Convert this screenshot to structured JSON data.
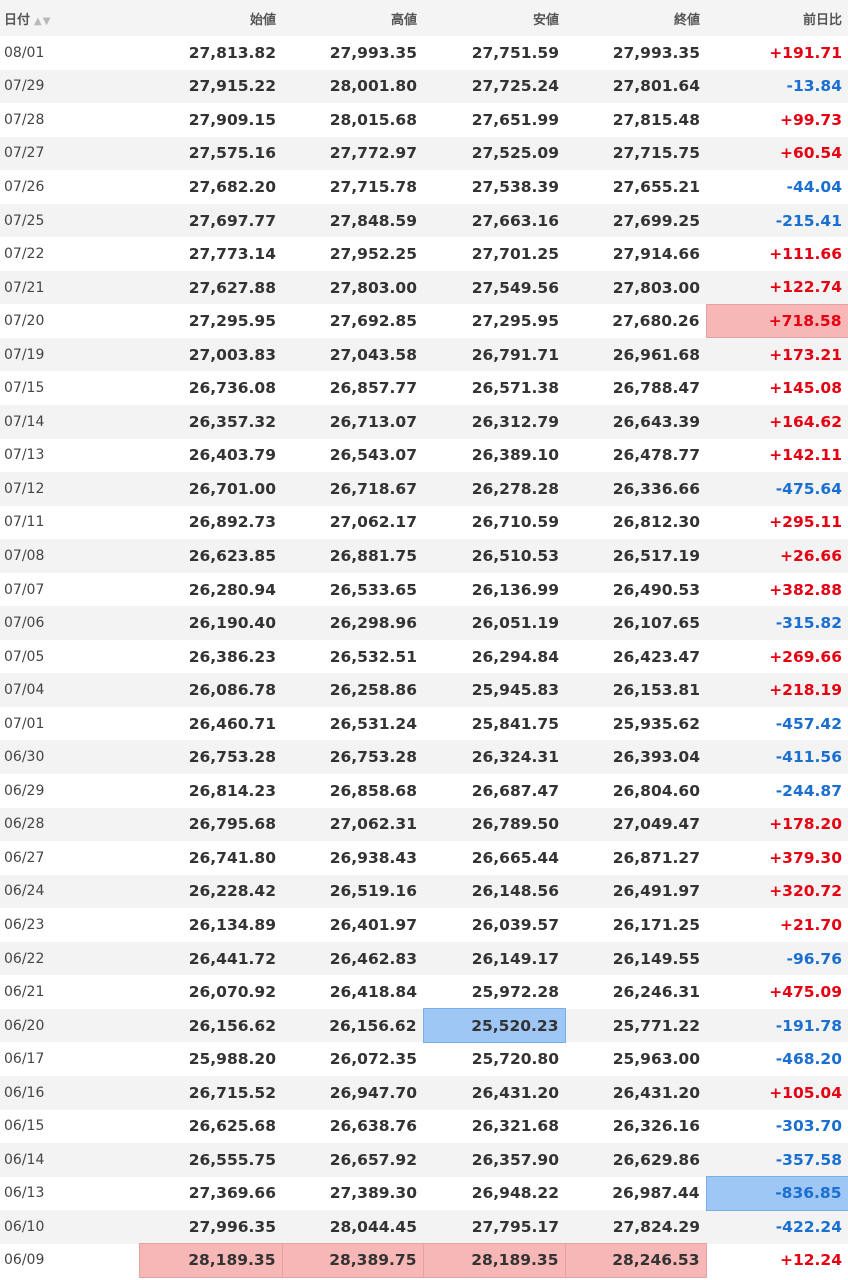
{
  "headers": {
    "date": "日付",
    "open": "始値",
    "high": "高値",
    "low": "安値",
    "close": "終値",
    "change": "前日比"
  },
  "colors": {
    "up": "#e60012",
    "down": "#1a6fd0",
    "highlight_high": "#f7b7b7",
    "highlight_low": "#9ec7f5"
  },
  "rows": [
    {
      "date": "08/01",
      "open": "27,813.82",
      "high": "27,993.35",
      "low": "27,751.59",
      "close": "27,993.35",
      "change": "+191.71"
    },
    {
      "date": "07/29",
      "open": "27,915.22",
      "high": "28,001.80",
      "low": "27,725.24",
      "close": "27,801.64",
      "change": "-13.84"
    },
    {
      "date": "07/28",
      "open": "27,909.15",
      "high": "28,015.68",
      "low": "27,651.99",
      "close": "27,815.48",
      "change": "+99.73"
    },
    {
      "date": "07/27",
      "open": "27,575.16",
      "high": "27,772.97",
      "low": "27,525.09",
      "close": "27,715.75",
      "change": "+60.54"
    },
    {
      "date": "07/26",
      "open": "27,682.20",
      "high": "27,715.78",
      "low": "27,538.39",
      "close": "27,655.21",
      "change": "-44.04"
    },
    {
      "date": "07/25",
      "open": "27,697.77",
      "high": "27,848.59",
      "low": "27,663.16",
      "close": "27,699.25",
      "change": "-215.41"
    },
    {
      "date": "07/22",
      "open": "27,773.14",
      "high": "27,952.25",
      "low": "27,701.25",
      "close": "27,914.66",
      "change": "+111.66"
    },
    {
      "date": "07/21",
      "open": "27,627.88",
      "high": "27,803.00",
      "low": "27,549.56",
      "close": "27,803.00",
      "change": "+122.74"
    },
    {
      "date": "07/20",
      "open": "27,295.95",
      "high": "27,692.85",
      "low": "27,295.95",
      "close": "27,680.26",
      "change": "+718.58",
      "hl": {
        "change": "red"
      }
    },
    {
      "date": "07/19",
      "open": "27,003.83",
      "high": "27,043.58",
      "low": "26,791.71",
      "close": "26,961.68",
      "change": "+173.21"
    },
    {
      "date": "07/15",
      "open": "26,736.08",
      "high": "26,857.77",
      "low": "26,571.38",
      "close": "26,788.47",
      "change": "+145.08"
    },
    {
      "date": "07/14",
      "open": "26,357.32",
      "high": "26,713.07",
      "low": "26,312.79",
      "close": "26,643.39",
      "change": "+164.62"
    },
    {
      "date": "07/13",
      "open": "26,403.79",
      "high": "26,543.07",
      "low": "26,389.10",
      "close": "26,478.77",
      "change": "+142.11"
    },
    {
      "date": "07/12",
      "open": "26,701.00",
      "high": "26,718.67",
      "low": "26,278.28",
      "close": "26,336.66",
      "change": "-475.64"
    },
    {
      "date": "07/11",
      "open": "26,892.73",
      "high": "27,062.17",
      "low": "26,710.59",
      "close": "26,812.30",
      "change": "+295.11"
    },
    {
      "date": "07/08",
      "open": "26,623.85",
      "high": "26,881.75",
      "low": "26,510.53",
      "close": "26,517.19",
      "change": "+26.66"
    },
    {
      "date": "07/07",
      "open": "26,280.94",
      "high": "26,533.65",
      "low": "26,136.99",
      "close": "26,490.53",
      "change": "+382.88"
    },
    {
      "date": "07/06",
      "open": "26,190.40",
      "high": "26,298.96",
      "low": "26,051.19",
      "close": "26,107.65",
      "change": "-315.82"
    },
    {
      "date": "07/05",
      "open": "26,386.23",
      "high": "26,532.51",
      "low": "26,294.84",
      "close": "26,423.47",
      "change": "+269.66"
    },
    {
      "date": "07/04",
      "open": "26,086.78",
      "high": "26,258.86",
      "low": "25,945.83",
      "close": "26,153.81",
      "change": "+218.19"
    },
    {
      "date": "07/01",
      "open": "26,460.71",
      "high": "26,531.24",
      "low": "25,841.75",
      "close": "25,935.62",
      "change": "-457.42"
    },
    {
      "date": "06/30",
      "open": "26,753.28",
      "high": "26,753.28",
      "low": "26,324.31",
      "close": "26,393.04",
      "change": "-411.56"
    },
    {
      "date": "06/29",
      "open": "26,814.23",
      "high": "26,858.68",
      "low": "26,687.47",
      "close": "26,804.60",
      "change": "-244.87"
    },
    {
      "date": "06/28",
      "open": "26,795.68",
      "high": "27,062.31",
      "low": "26,789.50",
      "close": "27,049.47",
      "change": "+178.20"
    },
    {
      "date": "06/27",
      "open": "26,741.80",
      "high": "26,938.43",
      "low": "26,665.44",
      "close": "26,871.27",
      "change": "+379.30"
    },
    {
      "date": "06/24",
      "open": "26,228.42",
      "high": "26,519.16",
      "low": "26,148.56",
      "close": "26,491.97",
      "change": "+320.72"
    },
    {
      "date": "06/23",
      "open": "26,134.89",
      "high": "26,401.97",
      "low": "26,039.57",
      "close": "26,171.25",
      "change": "+21.70"
    },
    {
      "date": "06/22",
      "open": "26,441.72",
      "high": "26,462.83",
      "low": "26,149.17",
      "close": "26,149.55",
      "change": "-96.76"
    },
    {
      "date": "06/21",
      "open": "26,070.92",
      "high": "26,418.84",
      "low": "25,972.28",
      "close": "26,246.31",
      "change": "+475.09"
    },
    {
      "date": "06/20",
      "open": "26,156.62",
      "high": "26,156.62",
      "low": "25,520.23",
      "close": "25,771.22",
      "change": "-191.78",
      "hl": {
        "low": "blue"
      }
    },
    {
      "date": "06/17",
      "open": "25,988.20",
      "high": "26,072.35",
      "low": "25,720.80",
      "close": "25,963.00",
      "change": "-468.20"
    },
    {
      "date": "06/16",
      "open": "26,715.52",
      "high": "26,947.70",
      "low": "26,431.20",
      "close": "26,431.20",
      "change": "+105.04"
    },
    {
      "date": "06/15",
      "open": "26,625.68",
      "high": "26,638.76",
      "low": "26,321.68",
      "close": "26,326.16",
      "change": "-303.70"
    },
    {
      "date": "06/14",
      "open": "26,555.75",
      "high": "26,657.92",
      "low": "26,357.90",
      "close": "26,629.86",
      "change": "-357.58"
    },
    {
      "date": "06/13",
      "open": "27,369.66",
      "high": "27,389.30",
      "low": "26,948.22",
      "close": "26,987.44",
      "change": "-836.85",
      "hl": {
        "change": "blue"
      }
    },
    {
      "date": "06/10",
      "open": "27,996.35",
      "high": "28,044.45",
      "low": "27,795.17",
      "close": "27,824.29",
      "change": "-422.24"
    },
    {
      "date": "06/09",
      "open": "28,189.35",
      "high": "28,389.75",
      "low": "28,189.35",
      "close": "28,246.53",
      "change": "+12.24",
      "hl": {
        "open": "red",
        "high": "red",
        "low": "red",
        "close": "red"
      }
    }
  ]
}
